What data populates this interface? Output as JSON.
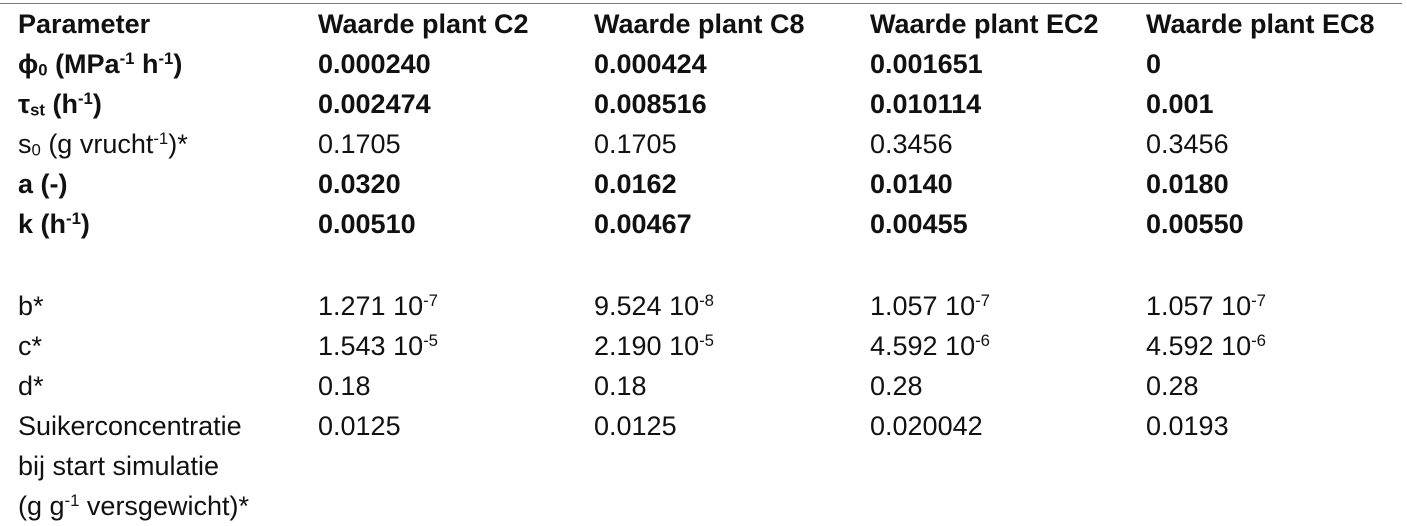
{
  "headers": [
    "Parameter",
    "Waarde plant C2",
    "Waarde plant C8",
    "Waarde plant EC2",
    "Waarde plant EC8"
  ],
  "rows": {
    "phi0": {
      "sym": "ϕ",
      "sub": "0",
      "pre": " (MPa",
      "sup1": "-1",
      "mid": " h",
      "sup2": "-1",
      "post": ")",
      "values": [
        "0.000240",
        "0.000424",
        "0.001651",
        "0"
      ]
    },
    "tau_st": {
      "sym": "τ",
      "sub": "st",
      "pre": " (h",
      "sup": "-1",
      "post": ")",
      "values": [
        "0.002474",
        "0.008516",
        "0.010114",
        "0.001"
      ]
    },
    "s0": {
      "sym": "s",
      "sub": "0",
      "pre": " (g vrucht",
      "sup": "-1",
      "post": ")*",
      "values": [
        "0.1705",
        "0.1705",
        "0.3456",
        "0.3456"
      ]
    },
    "a": {
      "label": "a (-)",
      "values": [
        "0.0320",
        "0.0162",
        "0.0140",
        "0.0180"
      ]
    },
    "k": {
      "pre": "k (h",
      "sup": "-1",
      "post": ")",
      "values": [
        "0.00510",
        "0.00467",
        "0.00455",
        "0.00550"
      ]
    },
    "b": {
      "label": "b*",
      "mantissa": [
        "1.271 10",
        "9.524 10",
        "1.057 10",
        "1.057 10"
      ],
      "exponent": [
        "-7",
        "-8",
        "-7",
        "-7"
      ]
    },
    "c": {
      "label": "c*",
      "mantissa": [
        "1.543 10",
        "2.190 10",
        "4.592 10",
        "4.592 10"
      ],
      "exponent": [
        "-5",
        "-5",
        "-6",
        "-6"
      ]
    },
    "d": {
      "label": "d*",
      "values": [
        "0.18",
        "0.18",
        "0.28",
        "0.28"
      ]
    },
    "sugar": {
      "line1": "Suikerconcentratie",
      "line2": "bij start simulatie",
      "line3_pre": "(g g",
      "line3_sup": "-1",
      "line3_post": " versgewicht)*",
      "values": [
        "0.0125",
        "0.0125",
        "0.020042",
        "0.0193"
      ]
    }
  }
}
